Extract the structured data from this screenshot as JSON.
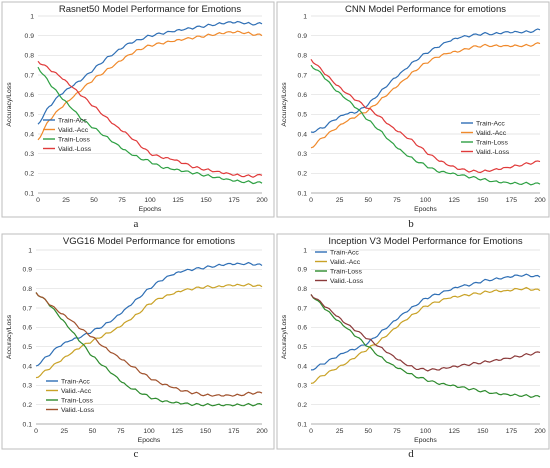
{
  "chart_data": [
    {
      "type": "line",
      "letter": "a",
      "title": "Rasnet50 Model Performance for Emotions",
      "xlabel": "Epochs",
      "ylabel": "Accuracy/Loss",
      "xlim": [
        0,
        200
      ],
      "ylim": [
        0.1,
        1.0
      ],
      "xticks": [
        "0",
        "25",
        "50",
        "75",
        "100",
        "125",
        "150",
        "175",
        "200"
      ],
      "yticks": [
        "0.1",
        "0.2",
        "0.3",
        "0.4",
        "0.5",
        "0.6",
        "0.7",
        "0.8",
        "0.9",
        "1"
      ],
      "grid": true,
      "legend_position": "bottom-left",
      "x": [
        0,
        10,
        20,
        30,
        40,
        50,
        60,
        70,
        80,
        90,
        100,
        110,
        120,
        130,
        140,
        150,
        160,
        170,
        180,
        190,
        200
      ],
      "series": [
        {
          "name": "Train-Acc",
          "color": "#2f6fb5",
          "values": [
            0.45,
            0.54,
            0.6,
            0.64,
            0.68,
            0.73,
            0.78,
            0.82,
            0.86,
            0.88,
            0.9,
            0.91,
            0.92,
            0.93,
            0.94,
            0.95,
            0.96,
            0.97,
            0.97,
            0.96,
            0.96
          ]
        },
        {
          "name": "Valid.-Acc",
          "color": "#f08a2c",
          "values": [
            0.37,
            0.47,
            0.53,
            0.58,
            0.63,
            0.68,
            0.72,
            0.76,
            0.8,
            0.83,
            0.85,
            0.86,
            0.87,
            0.88,
            0.89,
            0.9,
            0.91,
            0.92,
            0.92,
            0.91,
            0.9
          ]
        },
        {
          "name": "Train-Loss",
          "color": "#2ea043",
          "values": [
            0.74,
            0.66,
            0.59,
            0.53,
            0.47,
            0.43,
            0.39,
            0.35,
            0.31,
            0.28,
            0.26,
            0.23,
            0.22,
            0.21,
            0.2,
            0.19,
            0.18,
            0.17,
            0.16,
            0.155,
            0.15
          ]
        },
        {
          "name": "Valid.-Loss",
          "color": "#e03a3a",
          "values": [
            0.77,
            0.73,
            0.69,
            0.64,
            0.59,
            0.54,
            0.49,
            0.44,
            0.4,
            0.35,
            0.3,
            0.28,
            0.27,
            0.25,
            0.23,
            0.22,
            0.21,
            0.2,
            0.19,
            0.185,
            0.19
          ]
        }
      ]
    },
    {
      "type": "line",
      "letter": "b",
      "title": "CNN Model Performance for emotions",
      "xlabel": "Epochs",
      "ylabel": "Accuracy/Loss",
      "xlim": [
        0,
        200
      ],
      "ylim": [
        0.1,
        1.0
      ],
      "xticks": [
        "0",
        "25",
        "50",
        "75",
        "100",
        "125",
        "150",
        "175",
        "200"
      ],
      "yticks": [
        "0.1",
        "0.2",
        "0.3",
        "0.4",
        "0.5",
        "0.6",
        "0.7",
        "0.8",
        "0.9",
        "1"
      ],
      "grid": true,
      "legend_position": "bottom-right",
      "x": [
        0,
        10,
        20,
        30,
        40,
        50,
        60,
        70,
        80,
        90,
        100,
        110,
        120,
        130,
        140,
        150,
        160,
        170,
        180,
        190,
        200
      ],
      "series": [
        {
          "name": "Train-Acc",
          "color": "#2f6fb5",
          "values": [
            0.41,
            0.43,
            0.47,
            0.5,
            0.51,
            0.55,
            0.61,
            0.67,
            0.72,
            0.77,
            0.81,
            0.84,
            0.87,
            0.89,
            0.9,
            0.91,
            0.91,
            0.92,
            0.92,
            0.92,
            0.93
          ]
        },
        {
          "name": "Valid.-Acc",
          "color": "#f08a2c",
          "values": [
            0.33,
            0.38,
            0.42,
            0.46,
            0.49,
            0.52,
            0.57,
            0.62,
            0.67,
            0.72,
            0.76,
            0.79,
            0.81,
            0.82,
            0.84,
            0.85,
            0.85,
            0.85,
            0.85,
            0.85,
            0.86
          ]
        },
        {
          "name": "Train-Loss",
          "color": "#2ea043",
          "values": [
            0.75,
            0.7,
            0.63,
            0.58,
            0.53,
            0.47,
            0.42,
            0.36,
            0.31,
            0.27,
            0.24,
            0.21,
            0.2,
            0.19,
            0.18,
            0.17,
            0.16,
            0.155,
            0.15,
            0.148,
            0.145
          ]
        },
        {
          "name": "Valid.-Loss",
          "color": "#e03a3a",
          "values": [
            0.78,
            0.72,
            0.66,
            0.61,
            0.57,
            0.53,
            0.49,
            0.44,
            0.4,
            0.36,
            0.31,
            0.27,
            0.24,
            0.22,
            0.21,
            0.21,
            0.22,
            0.23,
            0.24,
            0.25,
            0.26
          ]
        }
      ]
    },
    {
      "type": "line",
      "letter": "c",
      "title": "VGG16 Model Performance for emotions",
      "xlabel": "Epochs",
      "ylabel": "Accuracy/Loss",
      "xlim": [
        0,
        200
      ],
      "ylim": [
        0.1,
        1.0
      ],
      "xticks": [
        "0",
        "25",
        "50",
        "75",
        "100",
        "125",
        "150",
        "175",
        "200"
      ],
      "yticks": [
        "0.1",
        "0.2",
        "0.3",
        "0.4",
        "0.5",
        "0.6",
        "0.7",
        "0.8",
        "0.9",
        "1"
      ],
      "grid": true,
      "legend_position": "center",
      "x": [
        0,
        10,
        20,
        30,
        40,
        50,
        60,
        70,
        80,
        90,
        100,
        110,
        120,
        130,
        140,
        150,
        160,
        170,
        180,
        190,
        200
      ],
      "series": [
        {
          "name": "Train-Acc",
          "color": "#2f6fb5",
          "values": [
            0.4,
            0.45,
            0.5,
            0.53,
            0.55,
            0.58,
            0.61,
            0.65,
            0.7,
            0.75,
            0.8,
            0.84,
            0.87,
            0.89,
            0.9,
            0.91,
            0.92,
            0.93,
            0.93,
            0.93,
            0.92
          ]
        },
        {
          "name": "Valid.-Acc",
          "color": "#c9a227",
          "values": [
            0.34,
            0.38,
            0.42,
            0.46,
            0.5,
            0.53,
            0.56,
            0.59,
            0.63,
            0.67,
            0.72,
            0.75,
            0.77,
            0.79,
            0.8,
            0.81,
            0.81,
            0.82,
            0.82,
            0.82,
            0.81
          ]
        },
        {
          "name": "Train-Loss",
          "color": "#2e8b2e",
          "values": [
            0.78,
            0.73,
            0.66,
            0.59,
            0.52,
            0.45,
            0.4,
            0.35,
            0.3,
            0.27,
            0.24,
            0.22,
            0.21,
            0.205,
            0.2,
            0.2,
            0.2,
            0.2,
            0.2,
            0.2,
            0.2
          ]
        },
        {
          "name": "Valid.-Loss",
          "color": "#a0522d",
          "values": [
            0.78,
            0.73,
            0.68,
            0.64,
            0.59,
            0.55,
            0.5,
            0.46,
            0.42,
            0.38,
            0.34,
            0.31,
            0.29,
            0.27,
            0.26,
            0.25,
            0.25,
            0.25,
            0.25,
            0.26,
            0.26
          ]
        }
      ]
    },
    {
      "type": "line",
      "letter": "d",
      "title": "Inception V3 Model Performance for Emotions",
      "xlabel": "Epochs",
      "ylabel": "Accuracy/Loss",
      "xlim": [
        0,
        200
      ],
      "ylim": [
        0.1,
        1.0
      ],
      "xticks": [
        "0",
        "25",
        "50",
        "75",
        "100",
        "125",
        "150",
        "175",
        "200"
      ],
      "yticks": [
        "0.1",
        "0.2",
        "0.3",
        "0.4",
        "0.5",
        "0.6",
        "0.7",
        "0.8",
        "0.9",
        "1"
      ],
      "grid": true,
      "legend_position": "top-left",
      "x": [
        0,
        10,
        20,
        30,
        40,
        50,
        60,
        70,
        80,
        90,
        100,
        110,
        120,
        130,
        140,
        150,
        160,
        170,
        180,
        190,
        200
      ],
      "series": [
        {
          "name": "Train-Acc",
          "color": "#2f6fb5",
          "values": [
            0.38,
            0.41,
            0.44,
            0.47,
            0.49,
            0.52,
            0.57,
            0.62,
            0.67,
            0.71,
            0.75,
            0.77,
            0.79,
            0.81,
            0.82,
            0.84,
            0.85,
            0.86,
            0.87,
            0.87,
            0.86
          ]
        },
        {
          "name": "Valid.-Acc",
          "color": "#c9a227",
          "values": [
            0.31,
            0.35,
            0.38,
            0.41,
            0.45,
            0.49,
            0.53,
            0.58,
            0.63,
            0.67,
            0.71,
            0.73,
            0.75,
            0.76,
            0.77,
            0.78,
            0.79,
            0.79,
            0.8,
            0.8,
            0.79
          ]
        },
        {
          "name": "Train-Loss",
          "color": "#2e8b2e",
          "values": [
            0.77,
            0.71,
            0.65,
            0.6,
            0.55,
            0.5,
            0.45,
            0.41,
            0.38,
            0.35,
            0.33,
            0.31,
            0.3,
            0.29,
            0.28,
            0.27,
            0.26,
            0.255,
            0.25,
            0.245,
            0.24
          ]
        },
        {
          "name": "Valid.-Loss",
          "color": "#8b3a3a",
          "values": [
            0.77,
            0.72,
            0.67,
            0.62,
            0.58,
            0.54,
            0.5,
            0.46,
            0.42,
            0.39,
            0.38,
            0.38,
            0.39,
            0.4,
            0.41,
            0.42,
            0.43,
            0.44,
            0.45,
            0.46,
            0.47
          ]
        }
      ]
    }
  ]
}
